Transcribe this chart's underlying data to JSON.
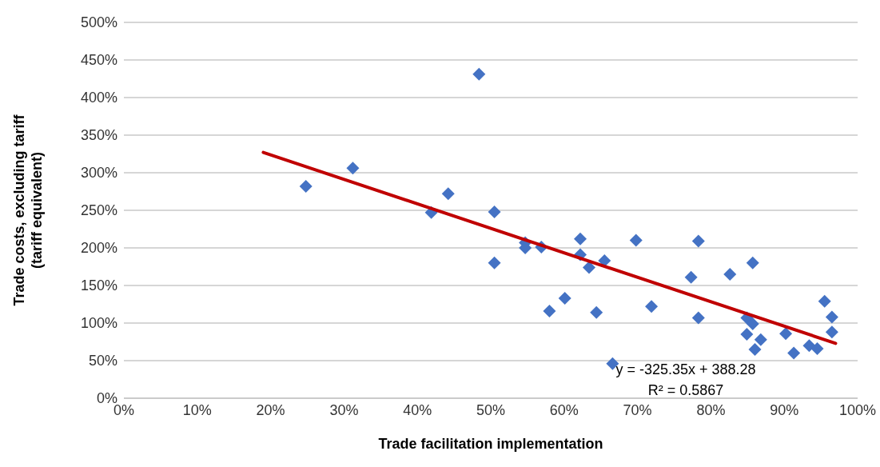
{
  "chart_data": {
    "type": "scatter",
    "xlabel": "Trade facilitation implementation",
    "ylabel": "Trade costs, excluding tariff\n(tariff equivalent)",
    "marker": "diamond",
    "grid": "y",
    "xlim": [
      0,
      100
    ],
    "xticks": [
      {
        "value": 0,
        "label": "0%"
      },
      {
        "value": 10,
        "label": "10%"
      },
      {
        "value": 20,
        "label": "20%"
      },
      {
        "value": 30,
        "label": "30%"
      },
      {
        "value": 40,
        "label": "40%"
      },
      {
        "value": 50,
        "label": "50%"
      },
      {
        "value": 60,
        "label": "60%"
      },
      {
        "value": 70,
        "label": "70%"
      },
      {
        "value": 80,
        "label": "80%"
      },
      {
        "value": 90,
        "label": "90%"
      },
      {
        "value": 100,
        "label": "100%"
      }
    ],
    "ylim": [
      0,
      500
    ],
    "yticks": [
      {
        "value": 0,
        "label": "0%"
      },
      {
        "value": 50,
        "label": "50%"
      },
      {
        "value": 100,
        "label": "100%"
      },
      {
        "value": 150,
        "label": "150%"
      },
      {
        "value": 200,
        "label": "200%"
      },
      {
        "value": 250,
        "label": "250%"
      },
      {
        "value": 300,
        "label": "300%"
      },
      {
        "value": 350,
        "label": "350%"
      },
      {
        "value": 400,
        "label": "400%"
      },
      {
        "value": 450,
        "label": "450%"
      },
      {
        "value": 500,
        "label": "500%"
      }
    ],
    "series": [
      {
        "type": "scatter",
        "color": "#4472c4",
        "x": [
          24.8,
          31.2,
          41.9,
          44.2,
          48.4,
          50.5,
          50.5,
          54.7,
          54.7,
          56.9,
          58.0,
          60.1,
          62.2,
          62.2,
          63.4,
          64.4,
          65.5,
          66.6,
          69.8,
          71.9,
          77.3,
          78.3,
          78.3,
          82.6,
          85.7,
          84.9,
          84.9,
          85.7,
          86.0,
          86.8,
          90.2,
          91.3,
          93.4,
          94.5,
          95.5,
          96.5,
          96.5
        ],
        "values": [
          282,
          306,
          247,
          272,
          431,
          248,
          180,
          207,
          200,
          201,
          116,
          133,
          212,
          191,
          174,
          114,
          183,
          46,
          210,
          122,
          161,
          209,
          107,
          165,
          180,
          107,
          85,
          99,
          65,
          78,
          86,
          60,
          70,
          66,
          129,
          108,
          88
        ]
      },
      {
        "type": "line",
        "color": "#c00000",
        "marker": "none",
        "x": [
          19,
          97
        ],
        "values": [
          327,
          73
        ]
      }
    ],
    "annotations": [
      "y = -325.35x + 388.28",
      "R² = 0.5867"
    ]
  }
}
